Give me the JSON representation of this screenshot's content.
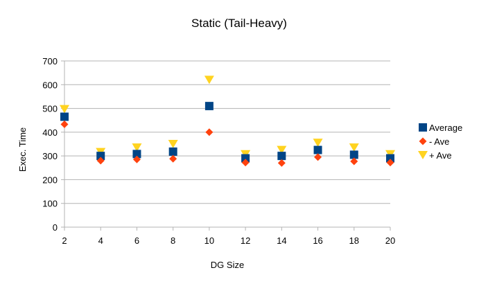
{
  "chart_data": {
    "type": "scatter",
    "title": "Static (Tail-Heavy)",
    "xlabel": "DG Size",
    "ylabel": "Exec. Time",
    "x": [
      2,
      4,
      6,
      8,
      10,
      12,
      14,
      16,
      18,
      20
    ],
    "xlim": [
      2,
      20
    ],
    "ylim": [
      0,
      700
    ],
    "y_ticks": [
      0,
      100,
      200,
      300,
      400,
      500,
      600,
      700
    ],
    "x_ticks": [
      2,
      4,
      6,
      8,
      10,
      12,
      14,
      16,
      18,
      20
    ],
    "grid": "horizontal",
    "legend_position": "right",
    "series": [
      {
        "name": "Average",
        "marker": "square",
        "color": "#004586",
        "values": [
          465,
          300,
          308,
          318,
          510,
          290,
          300,
          325,
          305,
          290
        ]
      },
      {
        "name": "- Ave",
        "marker": "diamond",
        "color": "#ff420e",
        "values": [
          433,
          280,
          285,
          288,
          400,
          272,
          270,
          295,
          277,
          272
        ]
      },
      {
        "name": "+ Ave",
        "marker": "triangle-down",
        "color": "#ffd320",
        "values": [
          497,
          316,
          335,
          350,
          620,
          307,
          325,
          355,
          335,
          307
        ]
      }
    ]
  }
}
